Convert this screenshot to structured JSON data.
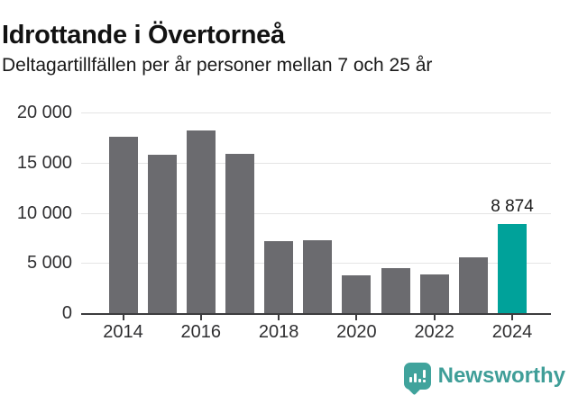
{
  "header": {
    "title": "Idrottande i Övertorneå",
    "subtitle": "Deltagartillfällen per år personer mellan 7 och 25 år"
  },
  "chart_data": {
    "type": "bar",
    "title": "Idrottande i Övertorneå",
    "subtitle": "Deltagartillfällen per år personer mellan 7 och 25 år",
    "categories": [
      2014,
      2015,
      2016,
      2017,
      2018,
      2019,
      2020,
      2021,
      2022,
      2023,
      2024
    ],
    "values": [
      17600,
      15800,
      18200,
      15900,
      7200,
      7300,
      3800,
      4500,
      3900,
      5600,
      8874
    ],
    "highlight_index": 10,
    "highlight_value_label": "8 874",
    "ylim": [
      0,
      20000
    ],
    "y_tick_values": [
      20000,
      15000,
      10000,
      5000,
      0
    ],
    "y_tick_labels": [
      "20 000",
      "15 000",
      "10 000",
      "5 000",
      "0"
    ],
    "x_tick_labels": [
      "2014",
      "2016",
      "2018",
      "2020",
      "2022",
      "2024"
    ],
    "grid": true,
    "legend": "none",
    "colors": {
      "bar": "#6b6b6f",
      "highlight": "#00a29a",
      "gridline": "#e4e4e4",
      "axis": "#3c3c3e",
      "tick_text": "#2f2f31",
      "label_text": "#1a1a1a"
    }
  },
  "footer": {
    "brand": "Newsworthy",
    "brand_color": "#3f9e98",
    "logo_icon": "bar-chart-speech-bubble-icon"
  }
}
